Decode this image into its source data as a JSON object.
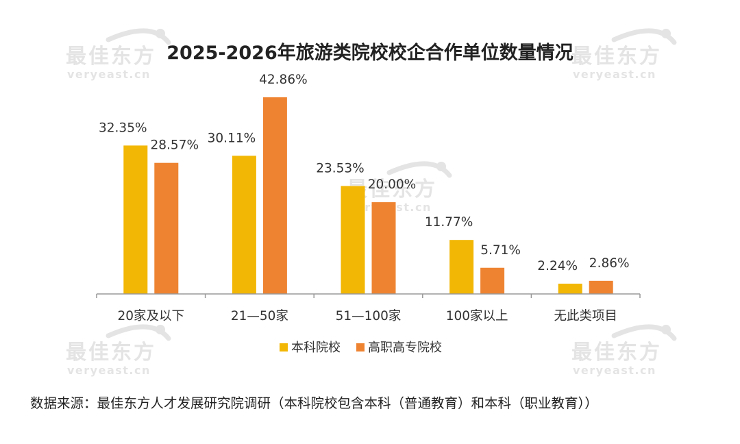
{
  "watermark": {
    "brand": "最佳东方",
    "domain": "veryeast.cn",
    "color": "#e4e4e4"
  },
  "source_note": "数据来源：最佳东方人才发展研究院调研（本科院校包含本科（普通教育）和本科（职业教育））",
  "chart_data": {
    "type": "bar",
    "title": "2025-2026年旅游类院校校企合作单位数量情况",
    "categories": [
      "20家及以下",
      "21—50家",
      "51—100家",
      "100家以上",
      "无此类项目"
    ],
    "series": [
      {
        "name": "本科院校",
        "values": [
          32.35,
          30.11,
          23.53,
          11.77,
          2.24
        ],
        "labels": [
          "32.35%",
          "30.11%",
          "23.53%",
          "11.77%",
          "2.24%"
        ],
        "color": "#F2B705"
      },
      {
        "name": "高职高专院校",
        "values": [
          28.57,
          42.86,
          20.0,
          5.71,
          2.86
        ],
        "labels": [
          "28.57%",
          "42.86%",
          "20.00%",
          "5.71%",
          "2.86%"
        ],
        "color": "#EE8432"
      }
    ],
    "ylim": [
      0,
      45
    ],
    "grid": false,
    "legend": "bottom",
    "xlabel": "",
    "ylabel": ""
  }
}
